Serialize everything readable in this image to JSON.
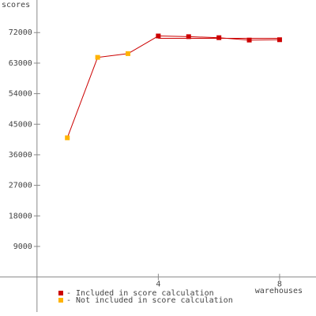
{
  "chart_data": {
    "type": "line",
    "y_label": "scores",
    "x_label": "warehouses",
    "x": [
      1,
      2,
      3,
      4,
      5,
      6,
      7,
      8
    ],
    "line_color": "#cc0000",
    "series": [
      {
        "name": "- Included in score calculation",
        "color": "#cc0000",
        "values": [
          null,
          null,
          null,
          71000,
          70800,
          70500,
          69800,
          69900
        ]
      },
      {
        "name": "- Not included in score calculation",
        "color": "#ffb300",
        "values": [
          41000,
          64700,
          65800,
          null,
          null,
          null,
          null,
          null
        ]
      }
    ],
    "reference_line": {
      "value": 70300,
      "from": 4,
      "to": 8
    },
    "xlim": [
      -1.22,
      9.2
    ],
    "xticks": [
      4,
      8
    ],
    "ylim": [
      -11500,
      81600
    ],
    "yticks": [
      9000,
      18000,
      27000,
      36000,
      45000,
      54000,
      63000,
      72000
    ]
  }
}
